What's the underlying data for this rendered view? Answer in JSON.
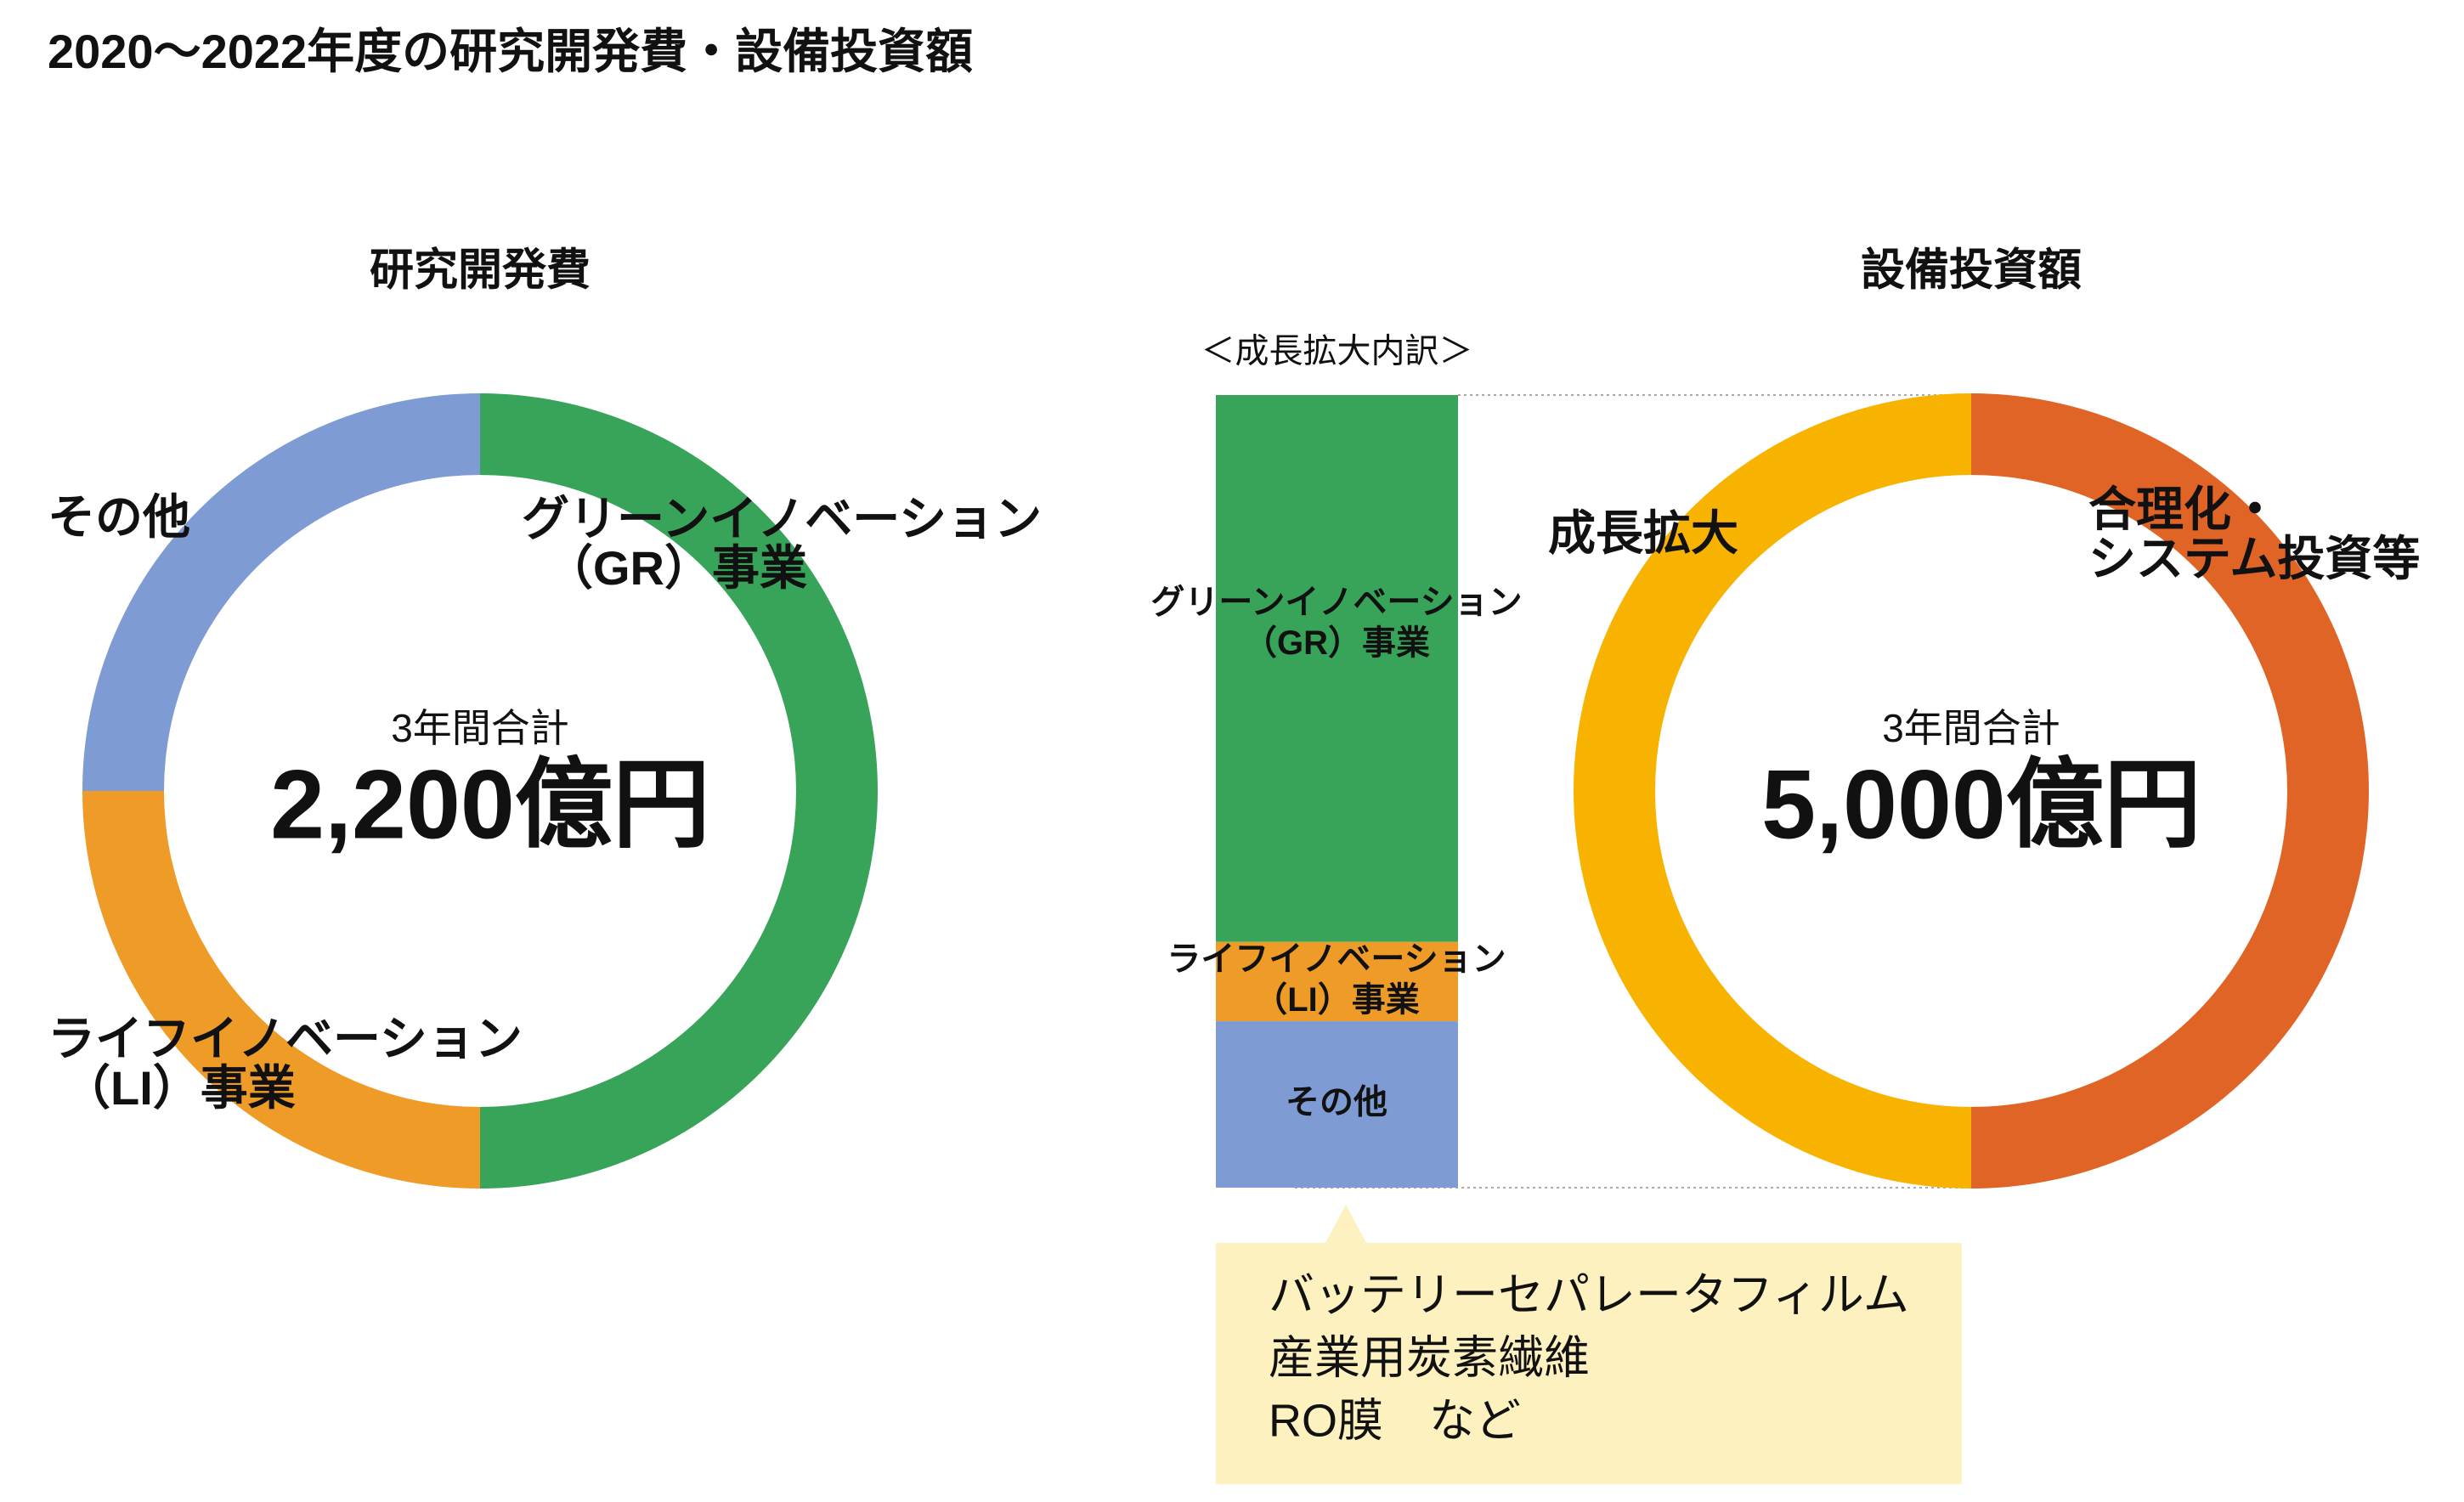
{
  "title": "2020〜2022年度の研究開発費・設備投資額",
  "chart_data": [
    {
      "type": "donut",
      "title": "研究開発費",
      "center_text": [
        "3年間合計",
        "2,200億円"
      ],
      "categories": [
        [
          "グリーンイノベーション",
          "（GR）事業"
        ],
        [
          "ライフイノベーション",
          "（LI）事業"
        ],
        [
          "その他"
        ]
      ],
      "values": [
        50,
        25,
        25
      ],
      "colors": [
        "#37a45a",
        "#ee9b27",
        "#7f9bd4"
      ]
    },
    {
      "type": "stacked-bar",
      "title": "＜成長拡大内訳＞",
      "categories": [
        [
          "グリーンイノベーション",
          "（GR）事業"
        ],
        [
          "ライフイノベーション",
          "（LI）事業"
        ],
        [
          "その他"
        ]
      ],
      "values": [
        69,
        10,
        21
      ],
      "colors": [
        "#37a45a",
        "#ee9b27",
        "#7f9bd4"
      ],
      "note": [
        "バッテリーセパレータフィルム",
        "産業用炭素繊維",
        "RO膜　など"
      ]
    },
    {
      "type": "donut",
      "title": "設備投資額",
      "center_text": [
        "3年間合計",
        "5,000億円"
      ],
      "categories": [
        [
          "合理化・",
          "システム投資等"
        ],
        [
          "成長拡大"
        ]
      ],
      "values": [
        50,
        50
      ],
      "colors": [
        "#e06426",
        "#f8b300"
      ]
    }
  ]
}
